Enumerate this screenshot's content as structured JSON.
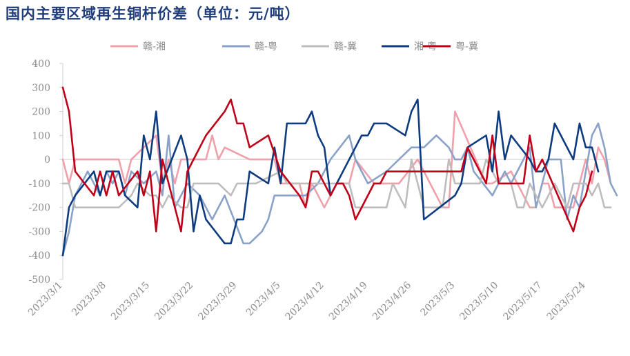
{
  "title": "国内主要区域再生铜杆价差（单位：元/吨）",
  "chart_data": {
    "type": "line",
    "title": "国内主要区域再生铜杆价差（单位：元/吨）",
    "xlabel": "",
    "ylabel": "",
    "ylim": [
      -500,
      400
    ],
    "yticks": [
      400,
      300,
      200,
      100,
      0,
      -100,
      -200,
      -300,
      -400,
      -500
    ],
    "xlim": [
      "2023/3/1",
      "2023/5/26"
    ],
    "xticks": [
      "2023/3/1",
      "2023/3/8",
      "2023/3/15",
      "2023/3/22",
      "2023/3/29",
      "2023/4/5",
      "2023/4/12",
      "2023/4/19",
      "2023/4/26",
      "2023/5/3",
      "2023/5/10",
      "2023/5/17",
      "2023/5/24"
    ],
    "grid": false,
    "legend": "top",
    "series": [
      {
        "name": "赣-湘",
        "color": "#f0a0aa",
        "points": [
          [
            "2023/3/1",
            0
          ],
          [
            "2023/3/2",
            -100
          ],
          [
            "2023/3/3",
            0
          ],
          [
            "2023/3/10",
            0
          ],
          [
            "2023/3/11",
            -100
          ],
          [
            "2023/3/12",
            0
          ],
          [
            "2023/3/16",
            100
          ],
          [
            "2023/3/17",
            -100
          ],
          [
            "2023/3/18",
            0
          ],
          [
            "2023/3/19",
            -100
          ],
          [
            "2023/3/20",
            0
          ],
          [
            "2023/3/24",
            0
          ],
          [
            "2023/3/25",
            100
          ],
          [
            "2023/3/26",
            0
          ],
          [
            "2023/3/27",
            50
          ],
          [
            "2023/3/31",
            0
          ],
          [
            "2023/4/4",
            0
          ],
          [
            "2023/4/5",
            -100
          ],
          [
            "2023/4/6",
            -100
          ],
          [
            "2023/4/8",
            -100
          ],
          [
            "2023/4/9",
            -200
          ],
          [
            "2023/4/10",
            -100
          ],
          [
            "2023/4/12",
            -200
          ],
          [
            "2023/4/14",
            -100
          ],
          [
            "2023/4/16",
            -100
          ],
          [
            "2023/4/17",
            0
          ],
          [
            "2023/4/20",
            -100
          ],
          [
            "2023/4/24",
            -100
          ],
          [
            "2023/4/27",
            0
          ],
          [
            "2023/5/1",
            -200
          ],
          [
            "2023/5/2",
            -200
          ],
          [
            "2023/5/3",
            200
          ],
          [
            "2023/5/8",
            -100
          ],
          [
            "2023/5/9",
            -100
          ],
          [
            "2023/5/12",
            -50
          ],
          [
            "2023/5/15",
            -200
          ],
          [
            "2023/5/16",
            -200
          ],
          [
            "2023/5/17",
            -100
          ],
          [
            "2023/5/18",
            -100
          ],
          [
            "2023/5/19",
            -200
          ],
          [
            "2023/5/22",
            -200
          ],
          [
            "2023/5/24",
            0
          ],
          [
            "2023/5/25",
            -100
          ],
          [
            "2023/5/26",
            50
          ],
          [
            "2023/5/27",
            0
          ],
          [
            "2023/5/28",
            -100
          ]
        ]
      },
      {
        "name": "赣-粤",
        "color": "#8aa2c8",
        "points": [
          [
            "2023/3/1",
            -400
          ],
          [
            "2023/3/2",
            -300
          ],
          [
            "2023/3/3",
            -150
          ],
          [
            "2023/3/5",
            -50
          ],
          [
            "2023/3/7",
            -150
          ],
          [
            "2023/3/8",
            -50
          ],
          [
            "2023/3/9",
            -100
          ],
          [
            "2023/3/10",
            -50
          ],
          [
            "2023/3/11",
            -150
          ],
          [
            "2023/3/12",
            -50
          ],
          [
            "2023/3/14",
            -100
          ],
          [
            "2023/3/16",
            -50
          ],
          [
            "2023/3/17",
            -150
          ],
          [
            "2023/3/18",
            100
          ],
          [
            "2023/3/19",
            -200
          ],
          [
            "2023/3/21",
            -100
          ],
          [
            "2023/3/23",
            -150
          ],
          [
            "2023/3/25",
            -250
          ],
          [
            "2023/3/27",
            -150
          ],
          [
            "2023/3/30",
            -350
          ],
          [
            "2023/3/31",
            -350
          ],
          [
            "2023/4/2",
            -300
          ],
          [
            "2023/4/3",
            -250
          ],
          [
            "2023/4/4",
            -150
          ],
          [
            "2023/4/9",
            -150
          ],
          [
            "2023/4/11",
            -100
          ],
          [
            "2023/4/13",
            0
          ],
          [
            "2023/4/16",
            100
          ],
          [
            "2023/4/17",
            0
          ],
          [
            "2023/4/19",
            -100
          ],
          [
            "2023/4/22",
            -50
          ],
          [
            "2023/4/24",
            0
          ],
          [
            "2023/4/26",
            50
          ],
          [
            "2023/4/28",
            50
          ],
          [
            "2023/4/30",
            100
          ],
          [
            "2023/5/2",
            50
          ],
          [
            "2023/5/3",
            0
          ],
          [
            "2023/5/4",
            0
          ],
          [
            "2023/5/5",
            50
          ],
          [
            "2023/5/6",
            -50
          ],
          [
            "2023/5/9",
            -150
          ],
          [
            "2023/5/11",
            -50
          ],
          [
            "2023/5/12",
            -100
          ],
          [
            "2023/5/15",
            50
          ],
          [
            "2023/5/16",
            -200
          ],
          [
            "2023/5/18",
            0
          ],
          [
            "2023/5/20",
            0
          ],
          [
            "2023/5/21",
            -250
          ],
          [
            "2023/5/22",
            -150
          ],
          [
            "2023/5/23",
            -200
          ],
          [
            "2023/5/25",
            100
          ],
          [
            "2023/5/26",
            150
          ],
          [
            "2023/5/27",
            50
          ],
          [
            "2023/5/28",
            -100
          ],
          [
            "2023/5/29",
            -150
          ]
        ]
      },
      {
        "name": "赣-冀",
        "color": "#bdbdbd",
        "points": [
          [
            "2023/3/1",
            -100
          ],
          [
            "2023/3/2",
            -100
          ],
          [
            "2023/3/3",
            -200
          ],
          [
            "2023/3/4",
            -200
          ],
          [
            "2023/3/10",
            -200
          ],
          [
            "2023/3/12",
            -150
          ],
          [
            "2023/3/13",
            -100
          ],
          [
            "2023/3/15",
            -150
          ],
          [
            "2023/3/16",
            -150
          ],
          [
            "2023/3/17",
            -200
          ],
          [
            "2023/3/18",
            -150
          ],
          [
            "2023/3/20",
            -200
          ],
          [
            "2023/3/21",
            -200
          ],
          [
            "2023/3/22",
            -100
          ],
          [
            "2023/3/23",
            -100
          ],
          [
            "2023/3/26",
            -100
          ],
          [
            "2023/3/28",
            -150
          ],
          [
            "2023/3/29",
            -100
          ],
          [
            "2023/4/1",
            -100
          ],
          [
            "2023/4/5",
            -50
          ],
          [
            "2023/4/6",
            -100
          ],
          [
            "2023/4/9",
            -100
          ],
          [
            "2023/4/12",
            -100
          ],
          [
            "2023/4/15",
            -100
          ],
          [
            "2023/4/16",
            -100
          ],
          [
            "2023/4/17",
            -200
          ],
          [
            "2023/4/20",
            -200
          ],
          [
            "2023/4/22",
            -200
          ],
          [
            "2023/4/23",
            -100
          ],
          [
            "2023/4/25",
            -200
          ],
          [
            "2023/4/26",
            0
          ],
          [
            "2023/4/28",
            -200
          ],
          [
            "2023/5/1",
            -200
          ],
          [
            "2023/5/2",
            0
          ],
          [
            "2023/5/3",
            -100
          ],
          [
            "2023/5/6",
            -100
          ],
          [
            "2023/5/7",
            -100
          ],
          [
            "2023/5/8",
            0
          ],
          [
            "2023/5/10",
            -100
          ],
          [
            "2023/5/12",
            -100
          ],
          [
            "2023/5/13",
            -200
          ],
          [
            "2023/5/14",
            -200
          ],
          [
            "2023/5/15",
            -100
          ],
          [
            "2023/5/17",
            -200
          ],
          [
            "2023/5/18",
            -150
          ],
          [
            "2023/5/19",
            -100
          ],
          [
            "2023/5/21",
            -200
          ],
          [
            "2023/5/22",
            -100
          ],
          [
            "2023/5/24",
            -100
          ],
          [
            "2023/5/25",
            -150
          ],
          [
            "2023/5/26",
            -100
          ],
          [
            "2023/5/27",
            -200
          ],
          [
            "2023/5/28",
            -200
          ]
        ]
      },
      {
        "name": "湘-粤",
        "color": "#0d3b80",
        "points": [
          [
            "2023/3/1",
            -400
          ],
          [
            "2023/3/2",
            -200
          ],
          [
            "2023/3/3",
            -150
          ],
          [
            "2023/3/6",
            -50
          ],
          [
            "2023/3/7",
            -150
          ],
          [
            "2023/3/8",
            -50
          ],
          [
            "2023/3/9",
            -50
          ],
          [
            "2023/3/10",
            -50
          ],
          [
            "2023/3/11",
            -150
          ],
          [
            "2023/3/13",
            -200
          ],
          [
            "2023/3/14",
            100
          ],
          [
            "2023/3/15",
            0
          ],
          [
            "2023/3/16",
            200
          ],
          [
            "2023/3/17",
            -100
          ],
          [
            "2023/3/20",
            100
          ],
          [
            "2023/3/21",
            0
          ],
          [
            "2023/3/22",
            -300
          ],
          [
            "2023/3/23",
            -150
          ],
          [
            "2023/3/24",
            -250
          ],
          [
            "2023/3/27",
            -350
          ],
          [
            "2023/3/28",
            -350
          ],
          [
            "2023/3/29",
            -250
          ],
          [
            "2023/3/30",
            -250
          ],
          [
            "2023/3/31",
            -50
          ],
          [
            "2023/4/3",
            -100
          ],
          [
            "2023/4/4",
            50
          ],
          [
            "2023/4/5",
            -100
          ],
          [
            "2023/4/6",
            150
          ],
          [
            "2023/4/9",
            150
          ],
          [
            "2023/4/10",
            200
          ],
          [
            "2023/4/11",
            100
          ],
          [
            "2023/4/12",
            50
          ],
          [
            "2023/4/13",
            -150
          ],
          [
            "2023/4/14",
            -100
          ],
          [
            "2023/4/17",
            50
          ],
          [
            "2023/4/18",
            100
          ],
          [
            "2023/4/19",
            100
          ],
          [
            "2023/4/20",
            150
          ],
          [
            "2023/4/22",
            150
          ],
          [
            "2023/4/25",
            100
          ],
          [
            "2023/4/26",
            200
          ],
          [
            "2023/4/27",
            250
          ],
          [
            "2023/4/28",
            -250
          ],
          [
            "2023/5/3",
            -150
          ],
          [
            "2023/5/4",
            -100
          ],
          [
            "2023/5/5",
            50
          ],
          [
            "2023/5/8",
            100
          ],
          [
            "2023/5/9",
            -50
          ],
          [
            "2023/5/10",
            200
          ],
          [
            "2023/5/11",
            0
          ],
          [
            "2023/5/12",
            100
          ],
          [
            "2023/5/15",
            0
          ],
          [
            "2023/5/16",
            -50
          ],
          [
            "2023/5/17",
            -50
          ],
          [
            "2023/5/18",
            0
          ],
          [
            "2023/5/19",
            150
          ],
          [
            "2023/5/22",
            0
          ],
          [
            "2023/5/23",
            150
          ],
          [
            "2023/5/24",
            50
          ],
          [
            "2023/5/25",
            50
          ],
          [
            "2023/5/26",
            -50
          ]
        ]
      },
      {
        "name": "粤-冀",
        "color": "#c00018",
        "points": [
          [
            "2023/3/1",
            300
          ],
          [
            "2023/3/2",
            200
          ],
          [
            "2023/3/3",
            -50
          ],
          [
            "2023/3/6",
            -150
          ],
          [
            "2023/3/7",
            -50
          ],
          [
            "2023/3/8",
            -150
          ],
          [
            "2023/3/9",
            -50
          ],
          [
            "2023/3/10",
            -150
          ],
          [
            "2023/3/13",
            -50
          ],
          [
            "2023/3/14",
            -150
          ],
          [
            "2023/3/15",
            -50
          ],
          [
            "2023/3/16",
            -300
          ],
          [
            "2023/3/17",
            0
          ],
          [
            "2023/3/20",
            -300
          ],
          [
            "2023/3/21",
            -50
          ],
          [
            "2023/3/24",
            100
          ],
          [
            "2023/3/27",
            200
          ],
          [
            "2023/3/28",
            250
          ],
          [
            "2023/3/29",
            150
          ],
          [
            "2023/3/30",
            150
          ],
          [
            "2023/3/31",
            50
          ],
          [
            "2023/4/3",
            100
          ],
          [
            "2023/4/5",
            -50
          ],
          [
            "2023/4/8",
            -150
          ],
          [
            "2023/4/9",
            -200
          ],
          [
            "2023/4/10",
            -50
          ],
          [
            "2023/4/11",
            -50
          ],
          [
            "2023/4/13",
            -150
          ],
          [
            "2023/4/14",
            -100
          ],
          [
            "2023/4/15",
            -100
          ],
          [
            "2023/4/16",
            -150
          ],
          [
            "2023/4/17",
            -250
          ],
          [
            "2023/4/20",
            -100
          ],
          [
            "2023/4/21",
            -100
          ],
          [
            "2023/4/22",
            -50
          ],
          [
            "2023/4/25",
            -50
          ],
          [
            "2023/4/27",
            -50
          ],
          [
            "2023/5/4",
            -50
          ],
          [
            "2023/5/5",
            50
          ],
          [
            "2023/5/8",
            -100
          ],
          [
            "2023/5/9",
            100
          ],
          [
            "2023/5/10",
            -100
          ],
          [
            "2023/5/11",
            -100
          ],
          [
            "2023/5/14",
            -100
          ],
          [
            "2023/5/15",
            100
          ],
          [
            "2023/5/16",
            -50
          ],
          [
            "2023/5/17",
            0
          ],
          [
            "2023/5/22",
            -300
          ],
          [
            "2023/5/23",
            -200
          ],
          [
            "2023/5/24",
            -150
          ],
          [
            "2023/5/25",
            -50
          ]
        ]
      }
    ]
  }
}
